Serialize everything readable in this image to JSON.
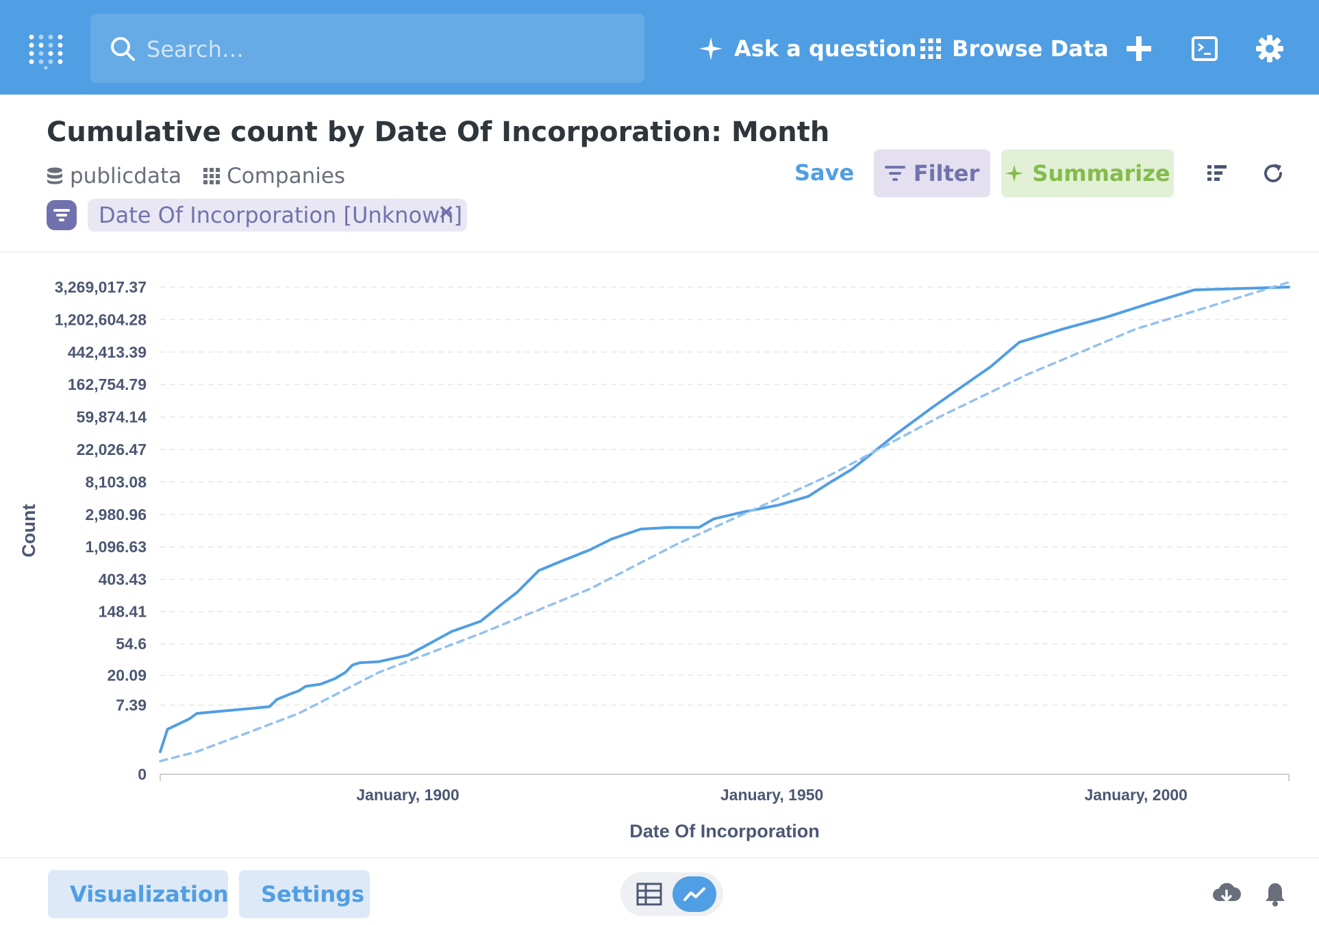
{
  "topbar": {
    "search_placeholder": "Search…",
    "ask_label": "Ask a question",
    "browse_label": "Browse Data"
  },
  "question": {
    "title": "Cumulative count by Date Of Incorporation: Month",
    "database": "publicdata",
    "table": "Companies",
    "filter_pill": "Date Of Incorporation [Unknown]",
    "filter_pill_close": "×"
  },
  "actions": {
    "save_label": "Save",
    "filter_label": "Filter",
    "summarize_label": "Summarize"
  },
  "footer": {
    "visualization_label": "Visualization",
    "settings_label": "Settings"
  },
  "colors": {
    "brand": "#509ee3",
    "filter": "#7172ad",
    "summarize": "#84bb4c"
  },
  "chart_data": {
    "type": "line",
    "xlabel": "Date Of Incorporation",
    "ylabel": "Count",
    "y_scale": "log",
    "y_ticks": [
      0,
      7.39,
      20.09,
      54.6,
      148.41,
      403.43,
      1096.63,
      2980.96,
      8103.08,
      22026.47,
      59874.14,
      162754.79,
      442413.39,
      1202604.28,
      3269017.37
    ],
    "y_tick_labels": [
      "0",
      "7.39",
      "20.09",
      "54.6",
      "148.41",
      "403.43",
      "1,096.63",
      "2,980.96",
      "8,103.08",
      "22,026.47",
      "59,874.14",
      "162,754.79",
      "442,413.39",
      "1,202,604.28",
      "3,269,017.37"
    ],
    "x_ticks": [
      "1900-01",
      "1950-01",
      "2000-01"
    ],
    "x_tick_labels": [
      "January, 1900",
      "January, 1950",
      "January, 2000"
    ],
    "xlim": [
      "1866-01",
      "2021-01"
    ],
    "series": [
      {
        "style": "solid",
        "points": [
          [
            "1866-01",
            1
          ],
          [
            "1867-01",
            3
          ],
          [
            "1870-01",
            4.5
          ],
          [
            "1871-01",
            5.5
          ],
          [
            "1881-01",
            7
          ],
          [
            "1882-01",
            9
          ],
          [
            "1884-01",
            11
          ],
          [
            "1885-01",
            12
          ],
          [
            "1886-01",
            14
          ],
          [
            "1888-01",
            15
          ],
          [
            "1890-01",
            18
          ],
          [
            "1891-06",
            22
          ],
          [
            "1892-06",
            28
          ],
          [
            "1893-06",
            30
          ],
          [
            "1896-01",
            31
          ],
          [
            "1900-01",
            38
          ],
          [
            "1903-01",
            55
          ],
          [
            "1906-01",
            80
          ],
          [
            "1910-01",
            110
          ],
          [
            "1913-01",
            190
          ],
          [
            "1915-01",
            270
          ],
          [
            "1918-01",
            530
          ],
          [
            "1921-01",
            700
          ],
          [
            "1925-01",
            1000
          ],
          [
            "1928-01",
            1400
          ],
          [
            "1932-01",
            1900
          ],
          [
            "1936-01",
            2000
          ],
          [
            "1940-01",
            2000
          ],
          [
            "1942-01",
            2600
          ],
          [
            "1946-01",
            3200
          ],
          [
            "1951-01",
            4000
          ],
          [
            "1955-01",
            5200
          ],
          [
            "1958-01",
            8000
          ],
          [
            "1961-01",
            12000
          ],
          [
            "1967-01",
            35000
          ],
          [
            "1972-01",
            80000
          ],
          [
            "1976-01",
            150000
          ],
          [
            "1980-01",
            280000
          ],
          [
            "1984-01",
            600000
          ],
          [
            "1990-01",
            900000
          ],
          [
            "1996-01",
            1300000
          ],
          [
            "2002-01",
            2000000
          ],
          [
            "2008-01",
            3000000
          ],
          [
            "2021-01",
            3269017.37
          ]
        ]
      },
      {
        "style": "dashed",
        "points": [
          [
            "1866-01",
            0.5
          ],
          [
            "1871-01",
            1
          ],
          [
            "1877-01",
            2.3
          ],
          [
            "1885-01",
            5.5
          ],
          [
            "1896-01",
            22
          ],
          [
            "1910-01",
            75
          ],
          [
            "1925-01",
            300
          ],
          [
            "1937-01",
            1200
          ],
          [
            "1958-01",
            10000
          ],
          [
            "1973-01",
            60000
          ],
          [
            "1985-01",
            220000
          ],
          [
            "2000-01",
            900000
          ],
          [
            "2021-01",
            3800000
          ]
        ]
      }
    ]
  }
}
